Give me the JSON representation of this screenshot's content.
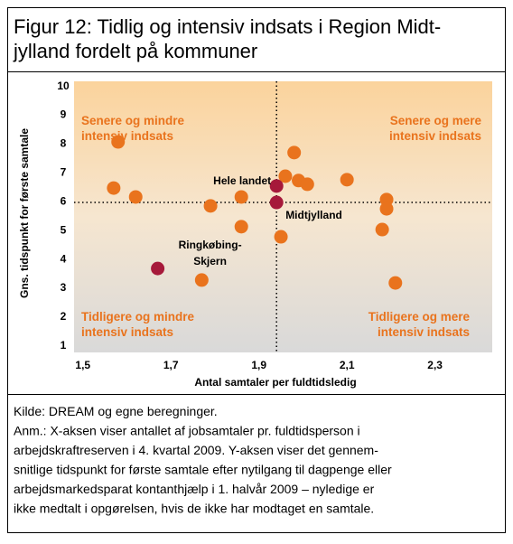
{
  "chart_data": {
    "type": "scatter",
    "title": [
      "Figur 12: Tidlig og intensiv indsats i Region Midt-",
      "jylland fordelt på kommuner"
    ],
    "x_label": "Antal samtaler per fuldtidsledig",
    "y_label": "Gns. tidspunkt for første samtale",
    "xlim": [
      1.48,
      2.43
    ],
    "ylim": [
      0.75,
      10.15
    ],
    "xticks": [
      {
        "value": 1.5,
        "label": "1,5"
      },
      {
        "value": 1.7,
        "label": "1,7"
      },
      {
        "value": 1.9,
        "label": "1,9"
      },
      {
        "value": 2.1,
        "label": "2,1"
      },
      {
        "value": 2.3,
        "label": "2,3"
      }
    ],
    "yticks": [
      1,
      2,
      3,
      4,
      5,
      6,
      7,
      8,
      9,
      10
    ],
    "reference_lines": {
      "x": 1.94,
      "y": 5.95
    },
    "color": "#e9731d",
    "highlight_color": "#a6193a",
    "points": [
      {
        "x": 1.58,
        "y": 8.05
      },
      {
        "x": 1.57,
        "y": 6.45
      },
      {
        "x": 1.62,
        "y": 6.14
      },
      {
        "x": 1.79,
        "y": 5.83
      },
      {
        "x": 1.86,
        "y": 6.14
      },
      {
        "x": 1.86,
        "y": 5.11
      },
      {
        "x": 1.77,
        "y": 3.26
      },
      {
        "x": 1.96,
        "y": 6.86
      },
      {
        "x": 1.98,
        "y": 7.68
      },
      {
        "x": 1.99,
        "y": 6.71
      },
      {
        "x": 2.01,
        "y": 6.58
      },
      {
        "x": 1.95,
        "y": 4.76
      },
      {
        "x": 2.1,
        "y": 6.74
      },
      {
        "x": 2.19,
        "y": 6.05
      },
      {
        "x": 2.19,
        "y": 5.73
      },
      {
        "x": 2.18,
        "y": 5.01
      },
      {
        "x": 2.21,
        "y": 3.16
      }
    ],
    "highlights": [
      {
        "label": [
          "Hele landet"
        ],
        "x": 1.94,
        "y": 6.52
      },
      {
        "label": [
          "Midtjylland"
        ],
        "x": 1.94,
        "y": 5.95
      },
      {
        "label": [
          "Ringkøbing-",
          "Skjern"
        ],
        "x": 1.67,
        "y": 3.66
      }
    ],
    "quadrant_labels": {
      "top_left": [
        "Senere og mindre",
        "intensiv indsats"
      ],
      "top_right": [
        "Senere og mere",
        "intensiv indsats"
      ],
      "bottom_left": [
        "Tidligere og mindre",
        "intensiv indsats"
      ],
      "bottom_right": [
        "Tidligere og mere",
        "intensiv indsats"
      ]
    },
    "footer": [
      "Kilde: DREAM og egne beregninger.",
      "Anm.: X-aksen viser antallet af jobsamtaler pr. fuldtidsperson i",
      "arbejdskraftreserven i 4. kvartal 2009. Y-aksen viser det gennem-",
      "snitlige tidspunkt for første samtale efter nytilgang til dagpenge eller",
      "arbejdsmarkedsparat kontanthjælp i 1. halvår 2009 – nyledige er",
      "ikke medtalt i opgørelsen, hvis de ikke har modtaget en samtale."
    ]
  }
}
